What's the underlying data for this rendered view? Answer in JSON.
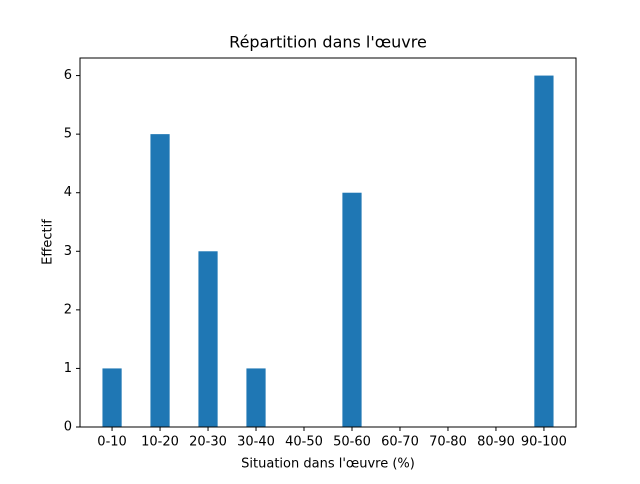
{
  "chart_data": {
    "type": "bar",
    "title": "Répartition dans l'œuvre",
    "xlabel": "Situation dans l'œuvre (%)",
    "ylabel": "Effectif",
    "categories": [
      "0-10",
      "10-20",
      "20-30",
      "30-40",
      "40-50",
      "50-60",
      "60-70",
      "70-80",
      "80-90",
      "90-100"
    ],
    "values": [
      1,
      5,
      3,
      1,
      0,
      4,
      0,
      0,
      0,
      6
    ],
    "color": "#1f77b4",
    "ylim": [
      0,
      6.3
    ],
    "yticks": [
      0,
      1,
      2,
      3,
      4,
      5,
      6
    ],
    "grid": false
  }
}
